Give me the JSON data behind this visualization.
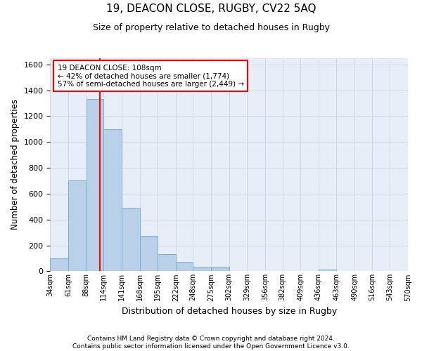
{
  "title": "19, DEACON CLOSE, RUGBY, CV22 5AQ",
  "subtitle": "Size of property relative to detached houses in Rugby",
  "xlabel": "Distribution of detached houses by size in Rugby",
  "ylabel": "Number of detached properties",
  "footer": "Contains HM Land Registry data © Crown copyright and database right 2024.\nContains public sector information licensed under the Open Government Licence v3.0.",
  "bar_color": "#b8d0e8",
  "bar_edge_color": "#7aafd4",
  "grid_color": "#d0d8e8",
  "background_color": "#e8eef8",
  "vline_x": 108,
  "vline_color": "red",
  "annotation_box_text": "19 DEACON CLOSE: 108sqm\n← 42% of detached houses are smaller (1,774)\n57% of semi-detached houses are larger (2,449) →",
  "annotation_box_color": "red",
  "categories": [
    "34sqm",
    "61sqm",
    "88sqm",
    "114sqm",
    "141sqm",
    "168sqm",
    "195sqm",
    "222sqm",
    "248sqm",
    "275sqm",
    "302sqm",
    "329sqm",
    "356sqm",
    "382sqm",
    "409sqm",
    "436sqm",
    "463sqm",
    "490sqm",
    "516sqm",
    "543sqm",
    "570sqm"
  ],
  "bin_edges": [
    34,
    61,
    88,
    114,
    141,
    168,
    195,
    222,
    248,
    275,
    302,
    329,
    356,
    382,
    409,
    436,
    463,
    490,
    516,
    543,
    570
  ],
  "values": [
    100,
    700,
    1330,
    1100,
    490,
    275,
    135,
    70,
    35,
    35,
    0,
    0,
    0,
    0,
    0,
    15,
    0,
    0,
    0,
    0,
    0
  ],
  "ylim": [
    0,
    1650
  ],
  "yticks": [
    0,
    200,
    400,
    600,
    800,
    1000,
    1200,
    1400,
    1600
  ]
}
